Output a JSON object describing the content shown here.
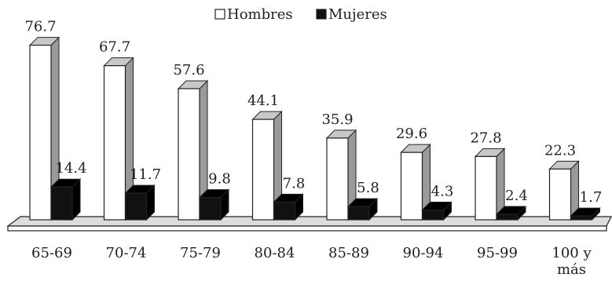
{
  "chart_data": {
    "type": "bar",
    "categories": [
      "65-69",
      "70-74",
      "75-79",
      "80-84",
      "85-89",
      "90-94",
      "95-99",
      "100 y más"
    ],
    "category_lines": [
      [
        "65-69"
      ],
      [
        "70-74"
      ],
      [
        "75-79"
      ],
      [
        "80-84"
      ],
      [
        "85-89"
      ],
      [
        "90-94"
      ],
      [
        "95-99"
      ],
      [
        "100 y",
        "más"
      ]
    ],
    "series": [
      {
        "name": "Hombres",
        "values": [
          76.7,
          67.7,
          57.6,
          44.1,
          35.9,
          29.6,
          27.8,
          22.3
        ],
        "color": "#ffffff",
        "side_color": "#9a9a9a",
        "top_color": "#c8c8c8"
      },
      {
        "name": "Mujeres",
        "values": [
          14.4,
          11.7,
          9.8,
          7.8,
          5.8,
          4.3,
          2.4,
          1.7
        ],
        "color": "#111111",
        "side_color": "#000000",
        "top_color": "#000000"
      }
    ],
    "style": "3d",
    "legend": "top-center",
    "grid": false,
    "title": "",
    "xlabel": "",
    "ylabel": ""
  },
  "colors": {
    "outline": "#222222",
    "floor_front": "#ffffff",
    "floor_top": "#dcdcdc"
  }
}
